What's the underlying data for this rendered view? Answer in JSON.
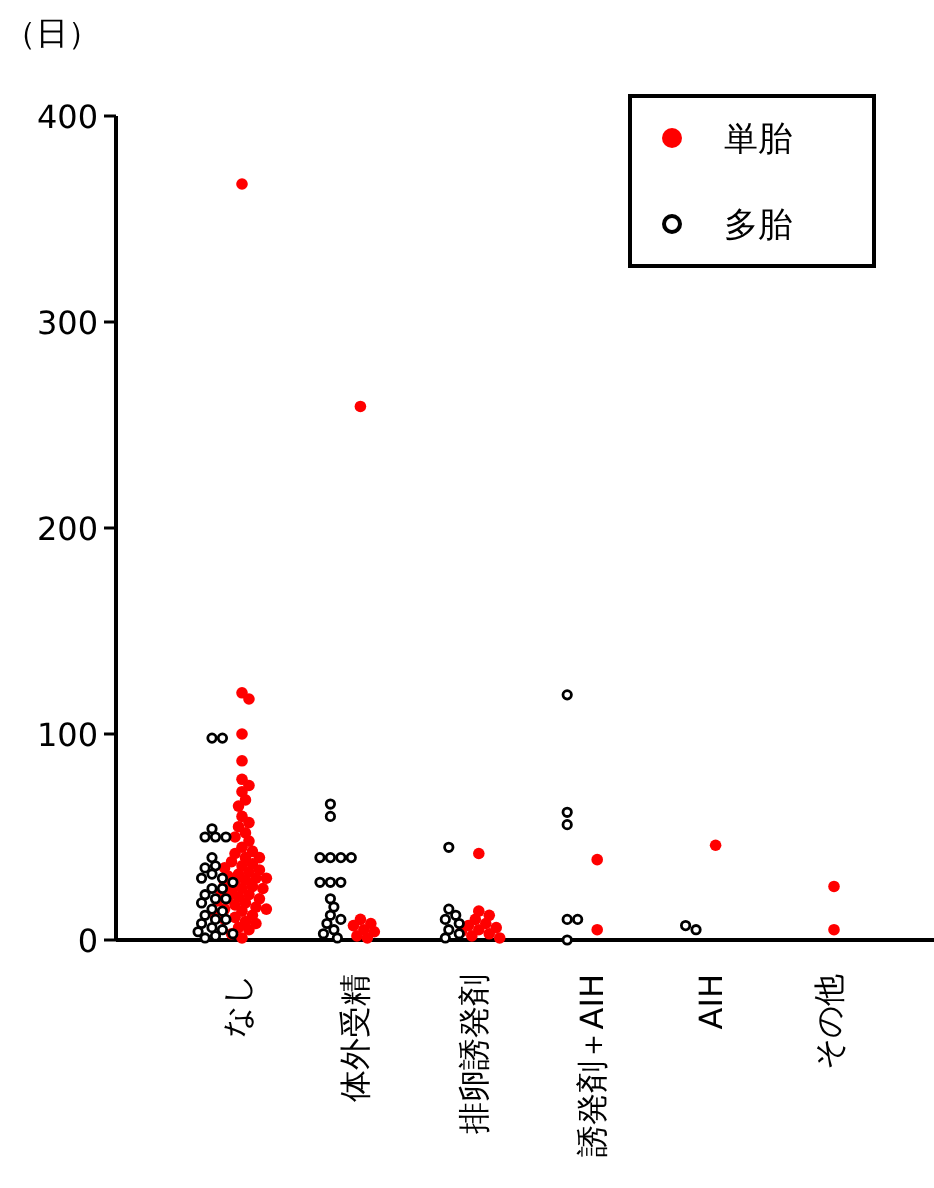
{
  "chart_data": {
    "type": "scatter",
    "ylabel": "（日）",
    "categories": [
      "なし",
      "体外受精",
      "排卵誘発剤",
      "誘発剤＋AIH",
      "AIH",
      "その他"
    ],
    "ylim": [
      0,
      400
    ],
    "yticks": [
      0,
      100,
      200,
      300,
      400
    ],
    "legend": "top right",
    "grid": false,
    "marker": "circle",
    "series": [
      {
        "name": "単胎",
        "color": "#ff0000",
        "x": [
          "なし",
          "なし",
          "なし",
          "なし",
          "なし",
          "なし",
          "なし",
          "なし",
          "なし",
          "なし",
          "なし",
          "なし",
          "なし",
          "なし",
          "なし",
          "なし",
          "なし",
          "なし",
          "なし",
          "なし",
          "なし",
          "なし",
          "なし",
          "なし",
          "なし",
          "なし",
          "なし",
          "なし",
          "なし",
          "なし",
          "なし",
          "なし",
          "なし",
          "なし",
          "なし",
          "なし",
          "なし",
          "なし",
          "なし",
          "なし",
          "なし",
          "なし",
          "なし",
          "なし",
          "なし",
          "なし",
          "なし",
          "なし",
          "なし",
          "なし",
          "なし",
          "なし",
          "なし",
          "なし",
          "なし",
          "なし",
          "なし",
          "なし",
          "なし",
          "なし",
          "体外受精",
          "体外受精",
          "体外受精",
          "体外受精",
          "体外受精",
          "体外受精",
          "体外受精",
          "体外受精",
          "排卵誘発剤",
          "排卵誘発剤",
          "排卵誘発剤",
          "排卵誘発剤",
          "排卵誘発剤",
          "排卵誘発剤",
          "排卵誘発剤",
          "排卵誘発剤",
          "排卵誘発剤",
          "排卵誘発剤",
          "排卵誘発剤",
          "排卵誘発剤",
          "誘発剤＋AIH",
          "誘発剤＋AIH",
          "AIH",
          "その他",
          "その他"
        ],
        "values": [
          367,
          120,
          117,
          100,
          87,
          78,
          75,
          72,
          68,
          65,
          60,
          57,
          55,
          52,
          50,
          48,
          45,
          43,
          42,
          40,
          40,
          38,
          37,
          36,
          35,
          34,
          33,
          32,
          31,
          30,
          30,
          29,
          28,
          27,
          26,
          25,
          25,
          24,
          23,
          22,
          21,
          20,
          20,
          19,
          18,
          17,
          16,
          15,
          15,
          14,
          13,
          12,
          11,
          10,
          9,
          8,
          6,
          5,
          3,
          1,
          259,
          10,
          8,
          7,
          5,
          4,
          2,
          1,
          42,
          14,
          12,
          10,
          8,
          7,
          6,
          5,
          4,
          3,
          2,
          1,
          39,
          5,
          46,
          26,
          5
        ]
      },
      {
        "name": "多胎",
        "color": "#000000",
        "x": [
          "なし",
          "なし",
          "なし",
          "なし",
          "なし",
          "なし",
          "なし",
          "なし",
          "なし",
          "なし",
          "なし",
          "なし",
          "なし",
          "なし",
          "なし",
          "なし",
          "なし",
          "なし",
          "なし",
          "なし",
          "なし",
          "なし",
          "なし",
          "なし",
          "なし",
          "なし",
          "なし",
          "なし",
          "なし",
          "なし",
          "なし",
          "体外受精",
          "体外受精",
          "体外受精",
          "体外受精",
          "体外受精",
          "体外受精",
          "体外受精",
          "体外受精",
          "体外受精",
          "体外受精",
          "体外受精",
          "体外受精",
          "体外受精",
          "体外受精",
          "体外受精",
          "体外受精",
          "体外受精",
          "排卵誘発剤",
          "排卵誘発剤",
          "排卵誘発剤",
          "排卵誘発剤",
          "排卵誘発剤",
          "排卵誘発剤",
          "排卵誘発剤",
          "排卵誘発剤",
          "誘発剤＋AIH",
          "誘発剤＋AIH",
          "誘発剤＋AIH",
          "誘発剤＋AIH",
          "誘発剤＋AIH",
          "誘発剤＋AIH",
          "AIH",
          "AIH"
        ],
        "values": [
          98,
          98,
          54,
          50,
          50,
          50,
          40,
          36,
          35,
          32,
          30,
          30,
          28,
          25,
          25,
          22,
          20,
          20,
          18,
          15,
          14,
          12,
          10,
          10,
          8,
          6,
          5,
          4,
          3,
          2,
          1,
          66,
          60,
          40,
          40,
          40,
          40,
          28,
          28,
          28,
          20,
          16,
          12,
          10,
          8,
          5,
          3,
          1,
          45,
          15,
          12,
          10,
          8,
          5,
          3,
          1,
          119,
          62,
          56,
          10,
          10,
          0,
          7,
          5
        ]
      }
    ]
  }
}
